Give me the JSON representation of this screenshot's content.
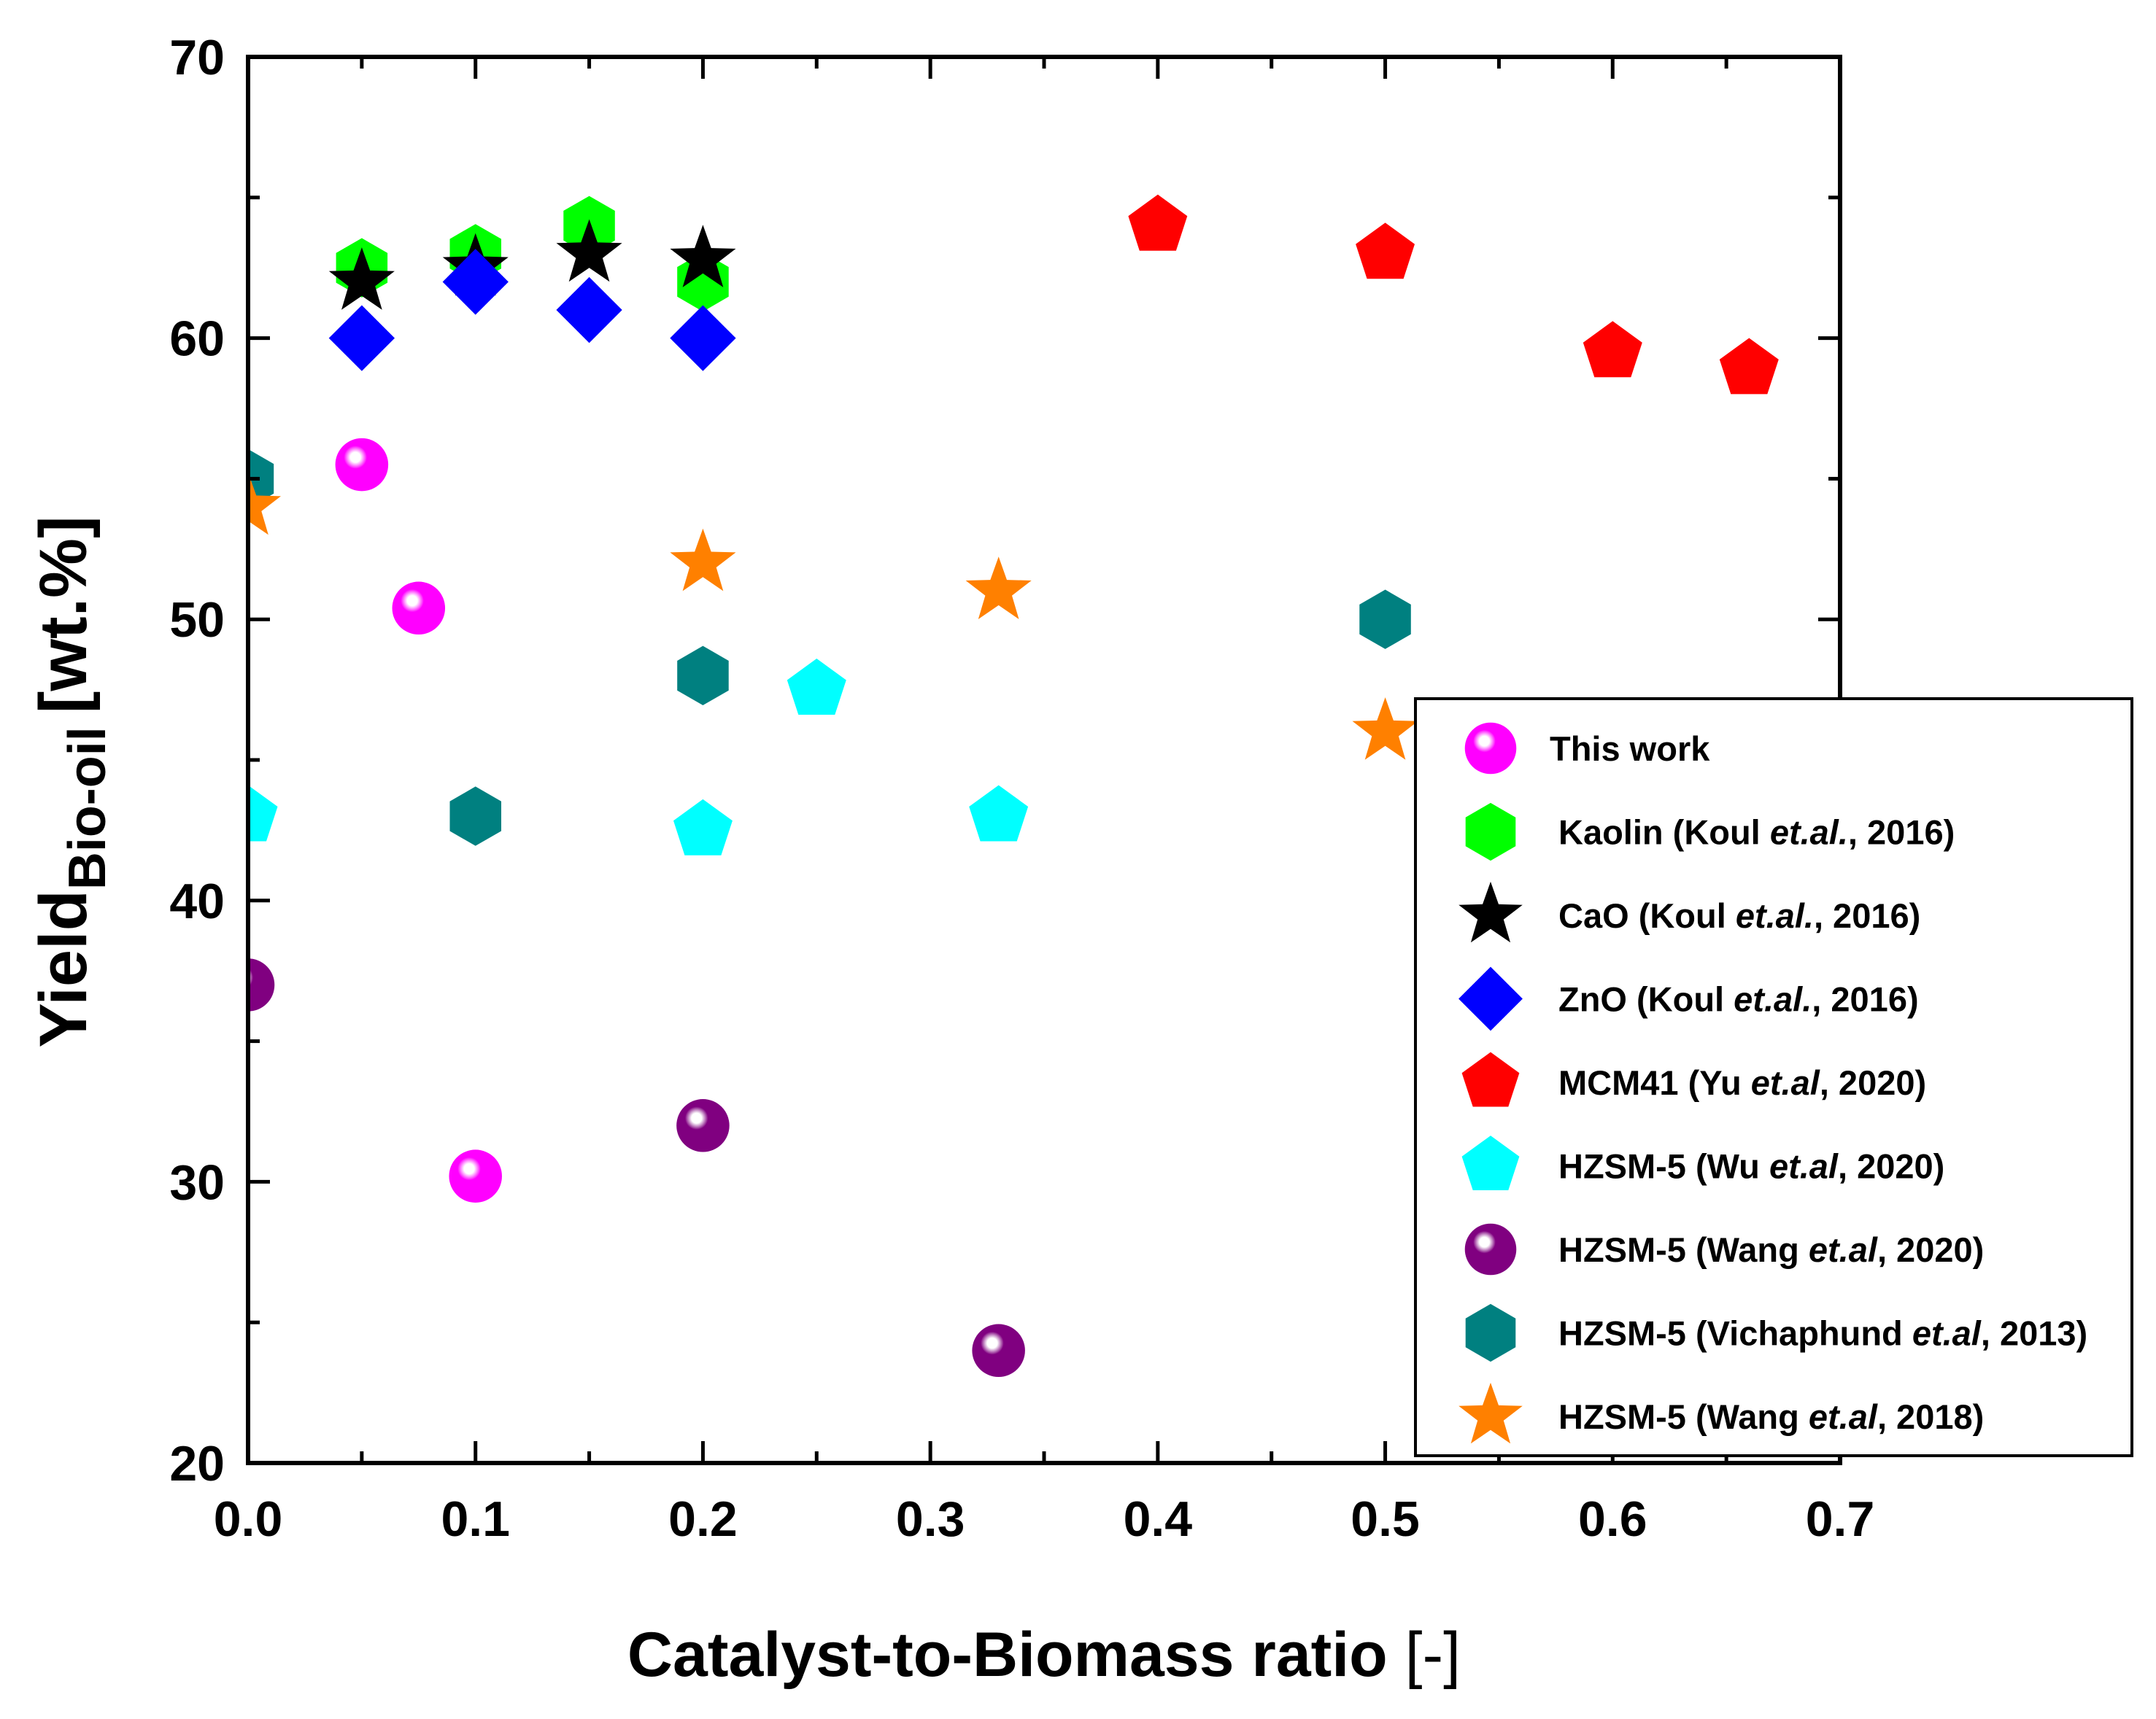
{
  "chart_data": {
    "type": "scatter",
    "title": "",
    "xlabel": "Catalyst-to-Biomass ratio",
    "xlabel_unit": "[-]",
    "ylabel_main": "Yield",
    "ylabel_sub": "Bio-oil",
    "ylabel_unit": "[wt.%]",
    "xlim": [
      0.0,
      0.7
    ],
    "ylim": [
      20,
      70
    ],
    "x_ticks": [
      "0.0",
      "0.1",
      "0.2",
      "0.3",
      "0.4",
      "0.5",
      "0.6",
      "0.7"
    ],
    "y_ticks": [
      "20",
      "30",
      "40",
      "50",
      "60",
      "70"
    ],
    "grid": false,
    "legend_position": "bottom-right",
    "series": [
      {
        "key": "this-work",
        "name": "This work",
        "parts": [
          {
            "t": "This work",
            "i": false
          }
        ],
        "marker": "sphere",
        "color": "#ff00ff",
        "points": [
          [
            0.05,
            55.5
          ],
          [
            0.075,
            50.4
          ],
          [
            0.1,
            30.2
          ]
        ]
      },
      {
        "key": "kaolin",
        "name": "Kaolin (Koul et.al., 2016)",
        "parts": [
          {
            "t": "Kaolin (Koul ",
            "i": false
          },
          {
            "t": "et.al.",
            "i": true
          },
          {
            "t": ", 2016)",
            "i": false
          }
        ],
        "marker": "hexagon",
        "color": "#00ff00",
        "points": [
          [
            0.05,
            62.5
          ],
          [
            0.1,
            63.0
          ],
          [
            0.15,
            64.0
          ],
          [
            0.2,
            62.0
          ]
        ]
      },
      {
        "key": "cao",
        "name": "CaO (Koul et.al., 2016)",
        "parts": [
          {
            "t": "CaO (Koul ",
            "i": false
          },
          {
            "t": "et.al.",
            "i": true
          },
          {
            "t": ", 2016)",
            "i": false
          }
        ],
        "marker": "star",
        "color": "#000000",
        "points": [
          [
            0.05,
            62.0
          ],
          [
            0.1,
            62.5
          ],
          [
            0.15,
            63.0
          ],
          [
            0.2,
            62.8
          ]
        ]
      },
      {
        "key": "zno",
        "name": "ZnO (Koul et.al., 2016)",
        "parts": [
          {
            "t": "ZnO (Koul ",
            "i": false
          },
          {
            "t": "et.al.",
            "i": true
          },
          {
            "t": ", 2016)",
            "i": false
          }
        ],
        "marker": "diamond",
        "color": "#0000ff",
        "points": [
          [
            0.05,
            60.0
          ],
          [
            0.1,
            62.0
          ],
          [
            0.15,
            61.0
          ],
          [
            0.2,
            60.0
          ]
        ]
      },
      {
        "key": "mcm41",
        "name": "MCM41 (Yu et.al, 2020)",
        "parts": [
          {
            "t": "MCM41 (Yu ",
            "i": false
          },
          {
            "t": "et.al",
            "i": true
          },
          {
            "t": ", 2020)",
            "i": false
          }
        ],
        "marker": "pentagon",
        "color": "#ff0000",
        "points": [
          [
            0.4,
            64.0
          ],
          [
            0.5,
            63.0
          ],
          [
            0.6,
            59.5
          ],
          [
            0.66,
            58.9
          ]
        ]
      },
      {
        "key": "hzsm5-wu",
        "name": "HZSM-5 (Wu et.al, 2020)",
        "parts": [
          {
            "t": "HZSM-5 (Wu ",
            "i": false
          },
          {
            "t": "et.al",
            "i": true
          },
          {
            "t": ", 2020)",
            "i": false
          }
        ],
        "marker": "pentagon",
        "color": "#00ffff",
        "points": [
          [
            0.0,
            43.0
          ],
          [
            0.2,
            42.5
          ],
          [
            0.25,
            47.5
          ],
          [
            0.33,
            43.0
          ]
        ]
      },
      {
        "key": "hzsm5-wang2020",
        "name": "HZSM-5 (Wang et.al, 2020)",
        "parts": [
          {
            "t": "HZSM-5 (Wang ",
            "i": false
          },
          {
            "t": "et.al",
            "i": true
          },
          {
            "t": ", 2020)",
            "i": false
          }
        ],
        "marker": "sphere",
        "color": "#800080",
        "points": [
          [
            0.0,
            37.0
          ],
          [
            0.2,
            32.0
          ],
          [
            0.33,
            24.0
          ]
        ]
      },
      {
        "key": "hzsm5-vichaphund",
        "name": "HZSM-5 (Vichaphund et.al, 2013)",
        "parts": [
          {
            "t": "HZSM-5 (Vichaphund ",
            "i": false
          },
          {
            "t": "et.al",
            "i": true
          },
          {
            "t": ", 2013)",
            "i": false
          }
        ],
        "marker": "hexagon",
        "color": "#008080",
        "points": [
          [
            0.0,
            55.0
          ],
          [
            0.1,
            43.0
          ],
          [
            0.2,
            48.0
          ],
          [
            0.5,
            50.0
          ]
        ]
      },
      {
        "key": "hzsm5-wang2018",
        "name": "HZSM-5 (Wang et.al, 2018)",
        "parts": [
          {
            "t": "HZSM-5 (Wang ",
            "i": false
          },
          {
            "t": "et.al",
            "i": true
          },
          {
            "t": ", 2018)",
            "i": false
          }
        ],
        "marker": "star",
        "color": "#ff8000",
        "points": [
          [
            0.0,
            54.0
          ],
          [
            0.2,
            52.0
          ],
          [
            0.33,
            51.0
          ],
          [
            0.5,
            46.0
          ]
        ]
      }
    ]
  }
}
